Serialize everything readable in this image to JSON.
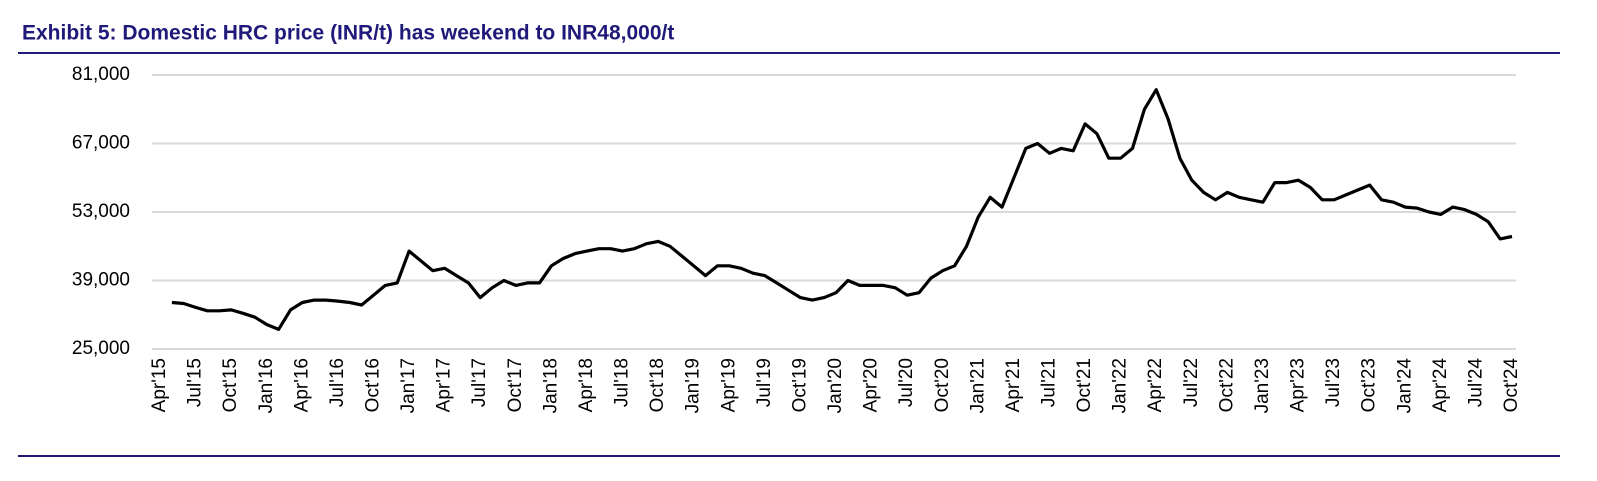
{
  "chart_data": {
    "type": "line",
    "title": "Exhibit 5: Domestic HRC price (INR/t) has weekend to INR48,000/t",
    "categories": [
      "Apr'15",
      null,
      null,
      "Jul'15",
      null,
      null,
      "Oct'15",
      null,
      null,
      "Jan'16",
      null,
      null,
      "Apr'16",
      null,
      null,
      "Jul'16",
      null,
      null,
      "Oct'16",
      null,
      null,
      "Jan'17",
      null,
      null,
      "Apr'17",
      null,
      null,
      "Jul'17",
      null,
      null,
      "Oct'17",
      null,
      null,
      "Jan'18",
      null,
      null,
      "Apr'18",
      null,
      null,
      "Jul'18",
      null,
      null,
      "Oct'18",
      null,
      null,
      "Jan'19",
      null,
      null,
      "Apr'19",
      null,
      null,
      "Jul'19",
      null,
      null,
      "Oct'19",
      null,
      null,
      "Jan'20",
      null,
      null,
      "Apr'20",
      null,
      null,
      "Jul'20",
      null,
      null,
      "Oct'20",
      null,
      null,
      "Jan'21",
      null,
      null,
      "Apr'21",
      null,
      null,
      "Jul'21",
      null,
      null,
      "Oct'21",
      null,
      null,
      "Jan'22",
      null,
      null,
      "Apr'22",
      null,
      null,
      "Jul'22",
      null,
      null,
      "Oct'22",
      null,
      null,
      "Jan'23",
      null,
      null,
      "Apr'23",
      null,
      null,
      "Jul'23",
      null,
      null,
      "Oct'23",
      null,
      null,
      "Jan'24",
      null,
      null,
      "Apr'24",
      null,
      null,
      "Jul'24",
      null,
      null,
      "Oct'24"
    ],
    "series": [
      {
        "color": "#000000",
        "values": [
          null,
          34500,
          34300,
          33500,
          32800,
          32800,
          33000,
          32300,
          31500,
          30000,
          29000,
          33000,
          34500,
          35000,
          35000,
          34800,
          34500,
          34000,
          36000,
          38000,
          38500,
          45000,
          43000,
          41000,
          41500,
          40000,
          38500,
          35500,
          37500,
          39000,
          38000,
          38500,
          38500,
          42000,
          43500,
          44500,
          45000,
          45500,
          45500,
          45000,
          45500,
          46500,
          47000,
          46000,
          44000,
          42000,
          40000,
          42000,
          42000,
          41500,
          40500,
          40000,
          38500,
          37000,
          35500,
          35000,
          35500,
          36500,
          39000,
          38000,
          38000,
          38000,
          37500,
          36000,
          36500,
          39500,
          41000,
          42000,
          46000,
          52000,
          56000,
          54000,
          60000,
          66000,
          67000,
          65000,
          66000,
          65500,
          71000,
          69000,
          64000,
          64000,
          66000,
          74000,
          78000,
          72000,
          64000,
          59500,
          57000,
          55500,
          57000,
          56000,
          55500,
          55000,
          59000,
          59000,
          59500,
          58000,
          55500,
          55500,
          56500,
          57500,
          58500,
          55500,
          55000,
          54000,
          53800,
          53000,
          52500,
          54000,
          53500,
          52500,
          51000,
          47500,
          48000
        ]
      }
    ],
    "ylim": [
      25000,
      81000
    ],
    "yticks": [
      {
        "value": 25000,
        "label": "25,000"
      },
      {
        "value": 39000,
        "label": "39,000"
      },
      {
        "value": 53000,
        "label": "53,000"
      },
      {
        "value": 67000,
        "label": "67,000"
      },
      {
        "value": 81000,
        "label": "81,000"
      }
    ],
    "grid": true
  }
}
